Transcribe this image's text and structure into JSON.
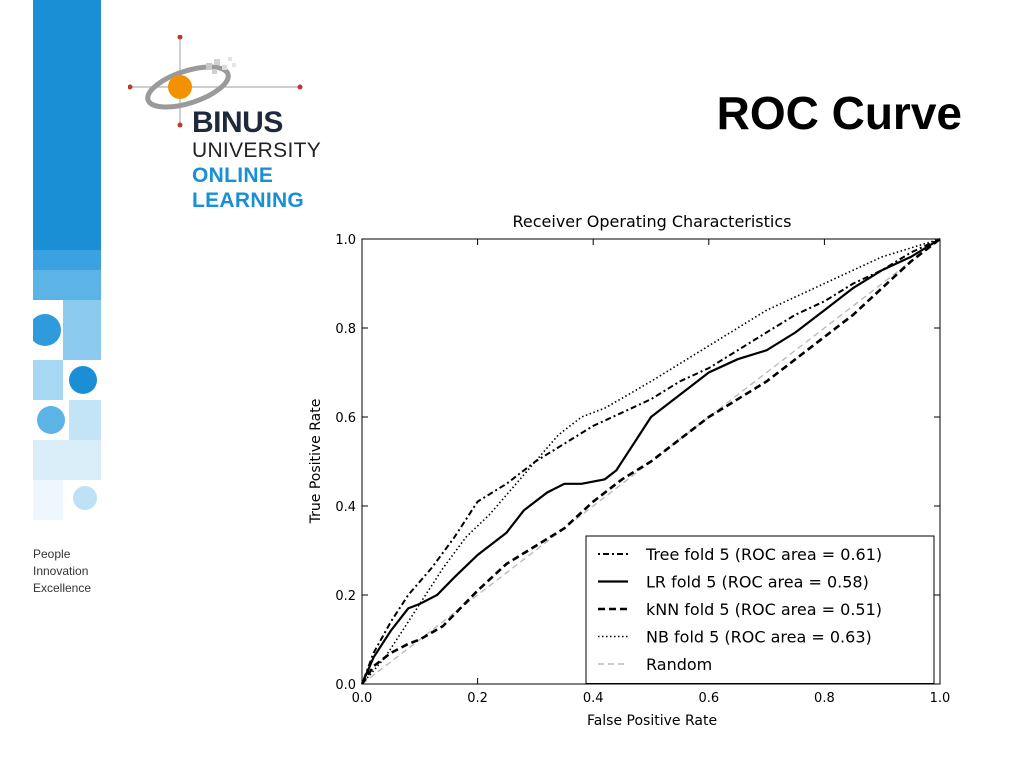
{
  "slide": {
    "title": "ROC Curve",
    "tagline": [
      "People",
      "Innovation",
      "Excellence"
    ]
  },
  "brand": {
    "line1": "BINUS",
    "line2": "UNIVERSITY",
    "line3": "ONLINE",
    "line4": "LEARNING",
    "colors": {
      "blue": "#1a8fd6",
      "orange": "#f39200",
      "dark": "#1e2a3c"
    }
  },
  "chart_data": {
    "type": "line",
    "title": "Receiver Operating Characteristics",
    "xlabel": "False Positive Rate",
    "ylabel": "True Positive Rate",
    "xlim": [
      0.0,
      1.0
    ],
    "ylim": [
      0.0,
      1.0
    ],
    "xticks": [
      "0.0",
      "0.2",
      "0.4",
      "0.6",
      "0.8",
      "1.0"
    ],
    "yticks": [
      "0.0",
      "0.2",
      "0.4",
      "0.6",
      "0.8",
      "1.0"
    ],
    "grid": false,
    "legend_position": "bottom-right",
    "series": [
      {
        "name": "Tree fold 5 (ROC area = 0.61)",
        "style": "dashdot",
        "x": [
          0,
          0.02,
          0.05,
          0.08,
          0.12,
          0.16,
          0.2,
          0.25,
          0.3,
          0.35,
          0.4,
          0.45,
          0.5,
          0.55,
          0.6,
          0.65,
          0.7,
          0.75,
          0.8,
          0.85,
          0.9,
          0.95,
          1.0
        ],
        "y": [
          0,
          0.07,
          0.14,
          0.2,
          0.26,
          0.33,
          0.41,
          0.45,
          0.5,
          0.54,
          0.58,
          0.61,
          0.64,
          0.68,
          0.71,
          0.75,
          0.79,
          0.83,
          0.86,
          0.9,
          0.93,
          0.97,
          1.0
        ]
      },
      {
        "name": "LR fold 5 (ROC area = 0.58)",
        "style": "solid",
        "x": [
          0,
          0.02,
          0.05,
          0.08,
          0.1,
          0.13,
          0.16,
          0.2,
          0.25,
          0.28,
          0.32,
          0.35,
          0.38,
          0.42,
          0.44,
          0.47,
          0.5,
          0.55,
          0.6,
          0.65,
          0.7,
          0.75,
          0.8,
          0.85,
          0.9,
          0.95,
          1.0
        ],
        "y": [
          0,
          0.06,
          0.12,
          0.17,
          0.18,
          0.2,
          0.24,
          0.29,
          0.34,
          0.39,
          0.43,
          0.45,
          0.45,
          0.46,
          0.48,
          0.54,
          0.6,
          0.65,
          0.7,
          0.73,
          0.75,
          0.79,
          0.84,
          0.89,
          0.93,
          0.96,
          1.0
        ]
      },
      {
        "name": "kNN fold 5 (ROC area = 0.51)",
        "style": "dashed",
        "x": [
          0,
          0.02,
          0.05,
          0.08,
          0.1,
          0.14,
          0.2,
          0.25,
          0.3,
          0.35,
          0.4,
          0.45,
          0.5,
          0.55,
          0.6,
          0.65,
          0.7,
          0.75,
          0.8,
          0.85,
          0.9,
          0.95,
          1.0
        ],
        "y": [
          0,
          0.04,
          0.07,
          0.09,
          0.1,
          0.13,
          0.21,
          0.27,
          0.31,
          0.35,
          0.41,
          0.46,
          0.5,
          0.55,
          0.6,
          0.64,
          0.68,
          0.73,
          0.78,
          0.83,
          0.89,
          0.95,
          1.0
        ]
      },
      {
        "name": "NB fold 5 (ROC area = 0.63)",
        "style": "dotted",
        "x": [
          0,
          0.02,
          0.04,
          0.07,
          0.1,
          0.14,
          0.18,
          0.22,
          0.26,
          0.3,
          0.34,
          0.38,
          0.42,
          0.46,
          0.5,
          0.55,
          0.6,
          0.65,
          0.7,
          0.75,
          0.8,
          0.85,
          0.9,
          0.95,
          1.0
        ],
        "y": [
          0,
          0.03,
          0.06,
          0.12,
          0.18,
          0.26,
          0.33,
          0.38,
          0.44,
          0.5,
          0.56,
          0.6,
          0.62,
          0.65,
          0.68,
          0.72,
          0.76,
          0.8,
          0.84,
          0.87,
          0.9,
          0.93,
          0.96,
          0.98,
          1.0
        ]
      },
      {
        "name": "Random",
        "style": "reference",
        "x": [
          0,
          1.0
        ],
        "y": [
          0,
          1.0
        ]
      }
    ]
  }
}
